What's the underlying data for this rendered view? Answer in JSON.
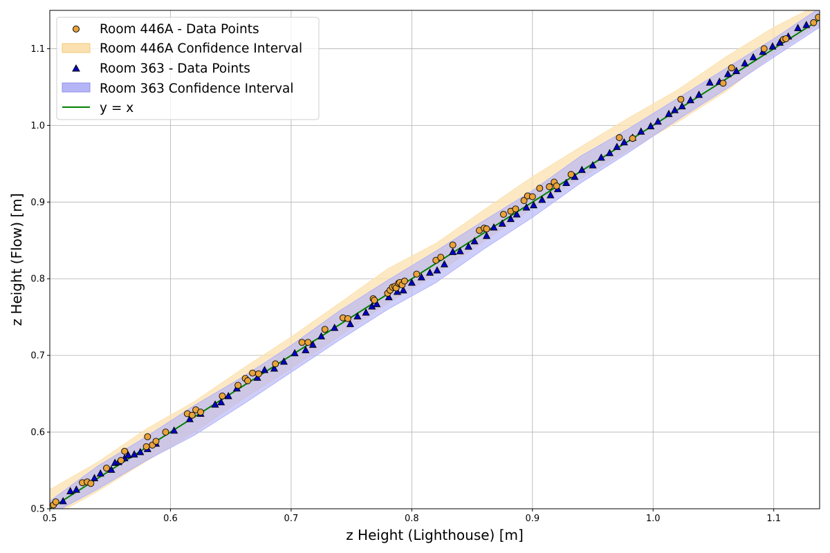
{
  "chart_data": {
    "type": "scatter",
    "title": "",
    "xlabel": "z Height (Lighthouse) [m]",
    "ylabel": "z Height (Flow) [m]",
    "xlim": [
      0.5,
      1.138
    ],
    "ylim": [
      0.5,
      1.15
    ],
    "xticks": [
      "0.5",
      "0.6",
      "0.7",
      "0.8",
      "0.9",
      "1.0",
      "1.1"
    ],
    "yticks": [
      "0.5",
      "0.6",
      "0.7",
      "0.8",
      "0.9",
      "1.0",
      "1.1"
    ],
    "grid": true,
    "legend_position": "upper-left",
    "legend": [
      "Room 446A - Data Points",
      "Room 446A Confidence Interval",
      "Room 363 - Data Points",
      "Room 363 Confidence Interval",
      "y = x"
    ],
    "colors": {
      "room446a_points": "#e8a33a",
      "room446a_band": "#fbe1b0",
      "room363_points": "#0000c8",
      "room363_band": "#b4b4f7",
      "identity_line": "#008000"
    },
    "series": [
      {
        "name": "Room 446A - Data Points",
        "marker": "circle",
        "x": [
          0.503,
          0.505,
          0.527,
          0.531,
          0.534,
          0.547,
          0.559,
          0.562,
          0.58,
          0.581,
          0.585,
          0.588,
          0.596,
          0.614,
          0.618,
          0.621,
          0.625,
          0.643,
          0.656,
          0.662,
          0.664,
          0.668,
          0.673,
          0.687,
          0.709,
          0.714,
          0.728,
          0.743,
          0.747,
          0.768,
          0.769,
          0.78,
          0.782,
          0.784,
          0.786,
          0.787,
          0.789,
          0.79,
          0.792,
          0.794,
          0.804,
          0.82,
          0.824,
          0.834,
          0.856,
          0.86,
          0.862,
          0.876,
          0.882,
          0.886,
          0.893,
          0.896,
          0.9,
          0.906,
          0.914,
          0.918,
          0.92,
          0.932,
          0.972,
          0.983,
          1.023,
          1.058,
          1.065,
          1.092,
          1.108,
          1.11,
          1.133,
          1.137
        ],
        "y": [
          0.505,
          0.509,
          0.534,
          0.535,
          0.533,
          0.553,
          0.563,
          0.575,
          0.581,
          0.594,
          0.583,
          0.588,
          0.6,
          0.624,
          0.622,
          0.629,
          0.626,
          0.647,
          0.661,
          0.67,
          0.667,
          0.677,
          0.676,
          0.689,
          0.717,
          0.717,
          0.734,
          0.749,
          0.748,
          0.774,
          0.772,
          0.781,
          0.785,
          0.789,
          0.79,
          0.788,
          0.794,
          0.795,
          0.792,
          0.797,
          0.806,
          0.824,
          0.828,
          0.844,
          0.863,
          0.866,
          0.865,
          0.884,
          0.888,
          0.891,
          0.902,
          0.908,
          0.907,
          0.918,
          0.92,
          0.926,
          0.921,
          0.936,
          0.984,
          0.983,
          1.034,
          1.055,
          1.075,
          1.1,
          1.112,
          1.113,
          1.134,
          1.141
        ]
      },
      {
        "name": "Room 363 - Data Points",
        "marker": "triangle",
        "x": [
          0.511,
          0.517,
          0.522,
          0.537,
          0.542,
          0.551,
          0.554,
          0.557,
          0.562,
          0.565,
          0.57,
          0.575,
          0.581,
          0.588,
          0.603,
          0.616,
          0.625,
          0.637,
          0.642,
          0.648,
          0.655,
          0.672,
          0.678,
          0.686,
          0.694,
          0.703,
          0.712,
          0.718,
          0.725,
          0.736,
          0.749,
          0.755,
          0.762,
          0.767,
          0.771,
          0.781,
          0.788,
          0.793,
          0.8,
          0.808,
          0.815,
          0.821,
          0.827,
          0.834,
          0.84,
          0.847,
          0.852,
          0.862,
          0.868,
          0.875,
          0.882,
          0.887,
          0.895,
          0.901,
          0.908,
          0.915,
          0.921,
          0.928,
          0.935,
          0.941,
          0.95,
          0.957,
          0.964,
          0.97,
          0.976,
          0.983,
          0.99,
          0.998,
          1.004,
          1.013,
          1.018,
          1.024,
          1.031,
          1.038,
          1.047,
          1.055,
          1.062,
          1.069,
          1.076,
          1.083,
          1.091,
          1.099,
          1.105,
          1.112,
          1.12,
          1.127
        ],
        "y": [
          0.51,
          0.523,
          0.525,
          0.54,
          0.546,
          0.551,
          0.56,
          0.561,
          0.566,
          0.57,
          0.571,
          0.574,
          0.578,
          0.585,
          0.602,
          0.617,
          0.624,
          0.636,
          0.639,
          0.647,
          0.657,
          0.671,
          0.681,
          0.683,
          0.692,
          0.703,
          0.707,
          0.714,
          0.725,
          0.736,
          0.741,
          0.751,
          0.756,
          0.764,
          0.767,
          0.776,
          0.783,
          0.785,
          0.795,
          0.802,
          0.808,
          0.811,
          0.819,
          0.835,
          0.836,
          0.842,
          0.849,
          0.856,
          0.867,
          0.872,
          0.878,
          0.884,
          0.893,
          0.896,
          0.903,
          0.909,
          0.917,
          0.925,
          0.933,
          0.942,
          0.948,
          0.958,
          0.964,
          0.972,
          0.978,
          0.984,
          0.992,
          0.999,
          1.005,
          1.015,
          1.02,
          1.025,
          1.033,
          1.04,
          1.056,
          1.057,
          1.067,
          1.071,
          1.081,
          1.089,
          1.096,
          1.103,
          1.108,
          1.116,
          1.127,
          1.131
        ]
      },
      {
        "name": "y = x",
        "type": "line",
        "x": [
          0.5,
          1.138
        ],
        "y": [
          0.5,
          1.138
        ]
      }
    ],
    "confidence_intervals": [
      {
        "name": "Room 446A Confidence Interval",
        "x": [
          0.5,
          0.54,
          0.58,
          0.62,
          0.66,
          0.7,
          0.74,
          0.78,
          0.82,
          0.86,
          0.9,
          0.94,
          0.98,
          1.02,
          1.06,
          1.1,
          1.138
        ],
        "lower": [
          0.488,
          0.523,
          0.562,
          0.6,
          0.643,
          0.683,
          0.725,
          0.768,
          0.806,
          0.849,
          0.892,
          0.931,
          0.968,
          1.004,
          1.044,
          1.093,
          1.132
        ],
        "upper": [
          0.525,
          0.561,
          0.604,
          0.64,
          0.683,
          0.724,
          0.768,
          0.813,
          0.846,
          0.89,
          0.933,
          0.972,
          1.01,
          1.046,
          1.089,
          1.128,
          1.158
        ]
      },
      {
        "name": "Room 363 Confidence Interval",
        "x": [
          0.5,
          0.54,
          0.58,
          0.62,
          0.66,
          0.7,
          0.74,
          0.78,
          0.82,
          0.86,
          0.9,
          0.94,
          0.98,
          1.02,
          1.06,
          1.1,
          1.138
        ],
        "lower": [
          0.492,
          0.526,
          0.563,
          0.596,
          0.636,
          0.678,
          0.72,
          0.76,
          0.795,
          0.839,
          0.88,
          0.925,
          0.965,
          1.007,
          1.047,
          1.089,
          1.128
        ],
        "upper": [
          0.51,
          0.556,
          0.594,
          0.635,
          0.672,
          0.713,
          0.758,
          0.798,
          0.836,
          0.876,
          0.915,
          0.96,
          0.996,
          1.035,
          1.074,
          1.113,
          1.153
        ]
      }
    ]
  }
}
